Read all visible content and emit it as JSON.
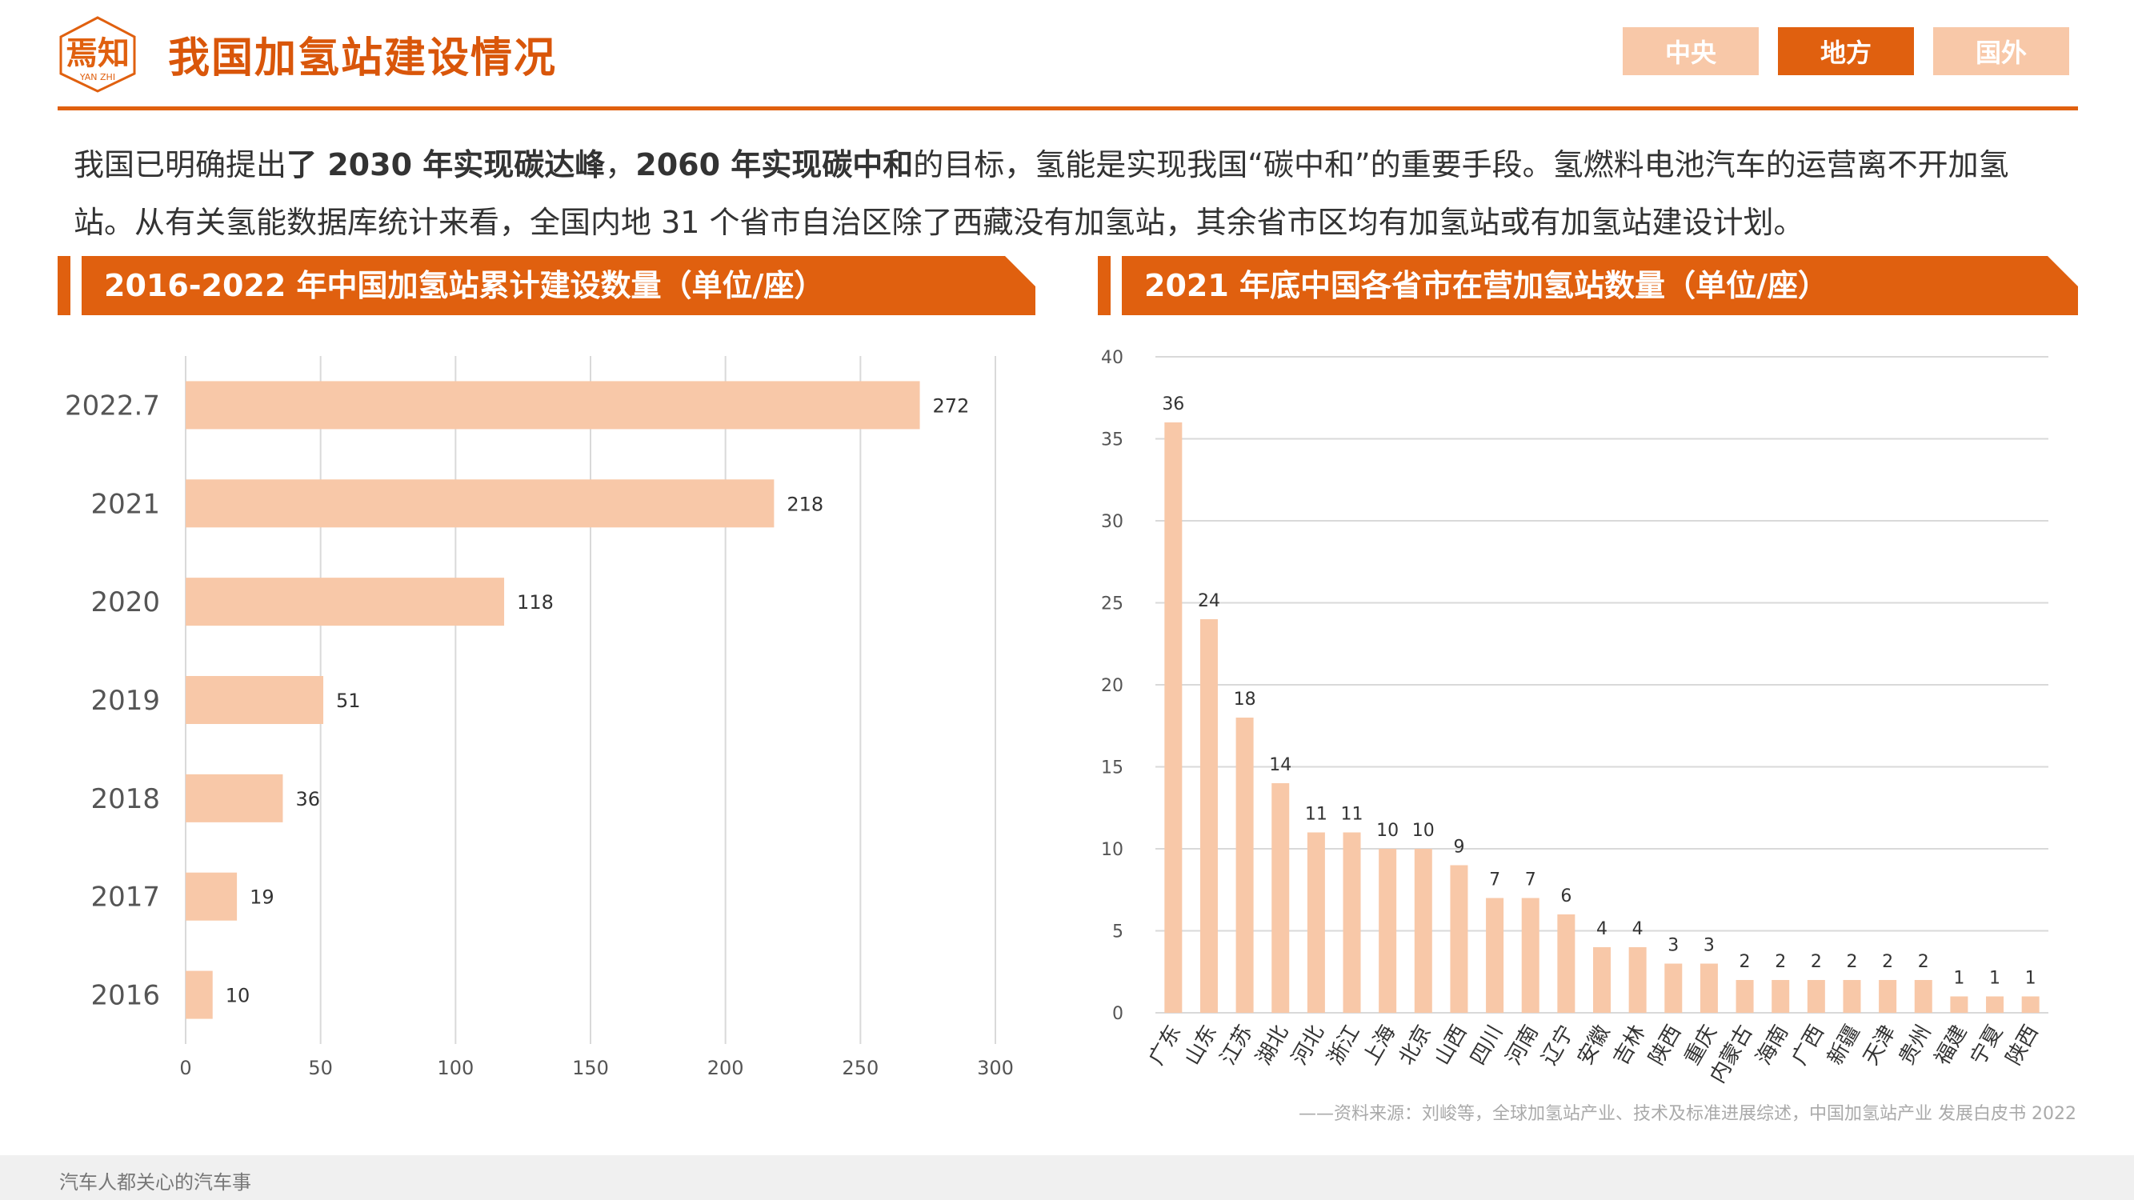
{
  "header": {
    "logo_text": "焉知",
    "logo_subtext": "YAN ZHI",
    "title": "我国加氢站建设情况",
    "tabs": [
      {
        "label": "中央",
        "active": false
      },
      {
        "label": "地方",
        "active": true
      },
      {
        "label": "国外",
        "active": false
      }
    ]
  },
  "intro": {
    "p1": "我国已明确提出",
    "b1": "了 2030 年实现碳达峰",
    "p2": "，",
    "b2": "2060 年实现碳中和",
    "p3": "的目标，氢能是实现我国“碳中和”的重要手段。氢燃料电池汽车的运营离不开加氢站。从有关氢能数据库统计来看，全国内地 31 个省市自治区除了西藏没有加氢站，其余省市区均有加氢站或有加氢站建设计划。"
  },
  "left_section": {
    "title": "2016-2022 年中国加氢站累计建设数量（单位/座）"
  },
  "right_section": {
    "title": "2021 年底中国各省市在营加氢站数量（单位/座）"
  },
  "colors": {
    "accent": "#e0600f",
    "bar": "#f8c8a8",
    "tab_inactive": "#f8c8a8",
    "grid": "#d9d9d9"
  },
  "chart_data": [
    {
      "type": "bar",
      "orientation": "horizontal",
      "title": "2016-2022 年中国加氢站累计建设数量（单位/座）",
      "categories": [
        "2022.7",
        "2021",
        "2020",
        "2019",
        "2018",
        "2017",
        "2016"
      ],
      "values": [
        272,
        218,
        118,
        51,
        36,
        19,
        10
      ],
      "xlim": [
        0,
        300
      ],
      "xticks": [
        0,
        50,
        100,
        150,
        200,
        250,
        300
      ],
      "grid": true,
      "data_labels": true
    },
    {
      "type": "bar",
      "orientation": "vertical",
      "title": "2021 年底中国各省市在营加氢站数量（单位/座）",
      "categories": [
        "广东",
        "山东",
        "江苏",
        "湖北",
        "河北",
        "浙江",
        "上海",
        "北京",
        "山西",
        "四川",
        "河南",
        "辽宁",
        "安徽",
        "吉林",
        "陕西",
        "重庆",
        "内蒙古",
        "海南",
        "广西",
        "新疆",
        "天津",
        "贵州",
        "福建",
        "宁夏",
        "陕西"
      ],
      "values": [
        36,
        24,
        18,
        14,
        11,
        11,
        10,
        10,
        9,
        7,
        7,
        6,
        4,
        4,
        3,
        3,
        2,
        2,
        2,
        2,
        2,
        2,
        1,
        1,
        1
      ],
      "ylim": [
        0,
        40
      ],
      "yticks": [
        0,
        5,
        10,
        15,
        20,
        25,
        30,
        35,
        40
      ],
      "grid": true,
      "data_labels": true
    }
  ],
  "source": "——资料来源：刘峻等，全球加氢站产业、技术及标准进展综述，中国加氢站产业 发展白皮书 2022",
  "footer": {
    "text": "汽车人都关心的汽车事"
  }
}
